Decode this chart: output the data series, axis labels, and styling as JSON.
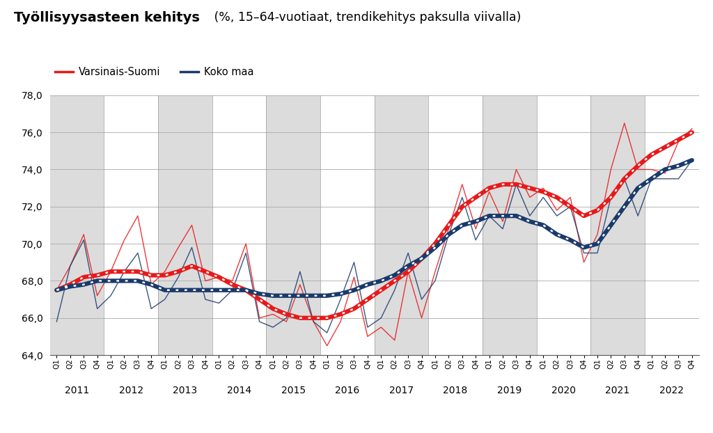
{
  "title_bold": "Työllisyysasteen kehitys",
  "title_normal": " (%, 15–64-vuotiaat, trendikehitys paksulla viivalla)",
  "legend_vs": "Varsinais-Suomi",
  "legend_km": "Koko maa",
  "ylim": [
    64.0,
    78.0
  ],
  "yticks": [
    64.0,
    66.0,
    68.0,
    70.0,
    72.0,
    74.0,
    76.0,
    78.0
  ],
  "color_vs": "#e8191a",
  "color_km": "#1a3a6b",
  "bg_gray": "#dcdcdc",
  "bg_white": "#ffffff",
  "vs_raw": [
    67.5,
    68.8,
    70.5,
    67.2,
    68.5,
    70.2,
    71.5,
    67.8,
    68.5,
    69.8,
    71.0,
    68.0,
    68.2,
    68.0,
    70.0,
    66.0,
    66.2,
    65.8,
    67.8,
    65.8,
    64.5,
    65.8,
    68.2,
    65.0,
    65.5,
    64.8,
    68.5,
    66.0,
    68.5,
    70.8,
    73.2,
    70.8,
    72.8,
    71.2,
    74.0,
    72.5,
    73.0,
    71.8,
    72.5,
    69.0,
    70.5,
    74.0,
    76.5,
    74.0,
    74.0,
    73.8,
    75.5,
    76.2
  ],
  "km_raw": [
    65.8,
    68.8,
    70.2,
    66.5,
    67.2,
    68.5,
    69.5,
    66.5,
    67.0,
    68.2,
    69.8,
    67.0,
    66.8,
    67.5,
    69.5,
    65.8,
    65.5,
    66.0,
    68.5,
    65.8,
    65.2,
    67.0,
    69.0,
    65.5,
    66.0,
    67.5,
    69.5,
    67.0,
    68.0,
    70.5,
    72.5,
    70.2,
    71.5,
    70.8,
    73.2,
    71.5,
    72.5,
    71.5,
    72.0,
    69.5,
    69.5,
    72.5,
    73.5,
    71.5,
    73.5,
    73.5,
    73.5,
    74.5
  ],
  "vs_trend": [
    67.5,
    67.8,
    68.2,
    68.3,
    68.5,
    68.5,
    68.5,
    68.3,
    68.3,
    68.5,
    68.8,
    68.5,
    68.2,
    67.8,
    67.5,
    67.0,
    66.5,
    66.2,
    66.0,
    66.0,
    66.0,
    66.2,
    66.5,
    67.0,
    67.5,
    68.0,
    68.5,
    69.2,
    70.0,
    71.0,
    72.0,
    72.5,
    73.0,
    73.2,
    73.2,
    73.0,
    72.8,
    72.5,
    72.0,
    71.5,
    71.8,
    72.5,
    73.5,
    74.2,
    74.8,
    75.2,
    75.6,
    76.0
  ],
  "km_trend": [
    67.5,
    67.7,
    67.8,
    68.0,
    68.0,
    68.0,
    68.0,
    67.8,
    67.5,
    67.5,
    67.5,
    67.5,
    67.5,
    67.5,
    67.5,
    67.3,
    67.2,
    67.2,
    67.2,
    67.2,
    67.2,
    67.3,
    67.5,
    67.8,
    68.0,
    68.3,
    68.8,
    69.2,
    69.8,
    70.5,
    71.0,
    71.2,
    71.5,
    71.5,
    71.5,
    71.2,
    71.0,
    70.5,
    70.2,
    69.8,
    70.0,
    71.0,
    72.0,
    73.0,
    73.5,
    74.0,
    74.2,
    74.5
  ],
  "years_unique": [
    2011,
    2012,
    2013,
    2014,
    2015,
    2016,
    2017,
    2018,
    2019,
    2020,
    2021,
    2022
  ]
}
